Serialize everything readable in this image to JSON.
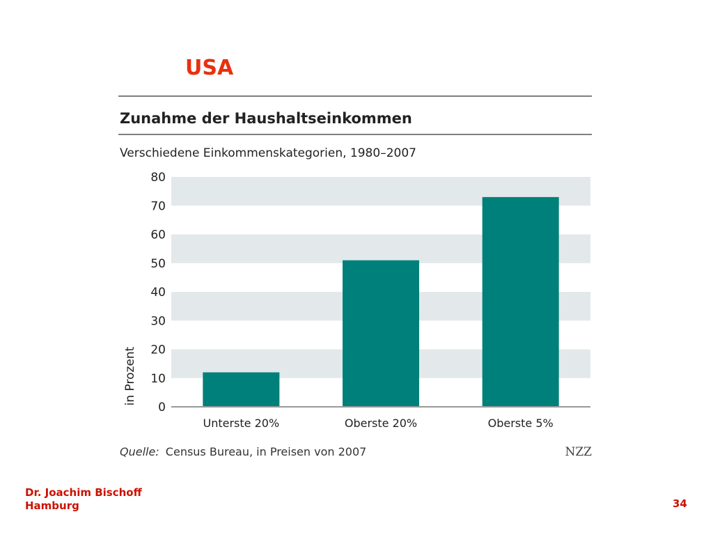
{
  "slide": {
    "title": "USA",
    "author": "Dr. Joachim Bischoff",
    "location": "Hamburg",
    "page_number": "34"
  },
  "chart_data": {
    "type": "bar",
    "title": "Zunahme der Haushaltseinkommen",
    "subtitle": "Verschiedene Einkommenskategorien, 1980–2007",
    "ylabel": "in Prozent",
    "xlabel": "",
    "ylim": [
      0,
      80
    ],
    "yticks": [
      0,
      10,
      20,
      30,
      40,
      50,
      60,
      70,
      80
    ],
    "categories": [
      "Unterste 20%",
      "Oberste 20%",
      "Oberste 5%"
    ],
    "values": [
      12,
      51,
      73
    ],
    "grid": "alternating horizontal bands",
    "bar_color": "#00807a",
    "band_color": "#e3e8ea",
    "source_label": "Quelle:",
    "source_text": "Census Bureau, in Preisen von 2007",
    "publisher": "NZZ"
  }
}
